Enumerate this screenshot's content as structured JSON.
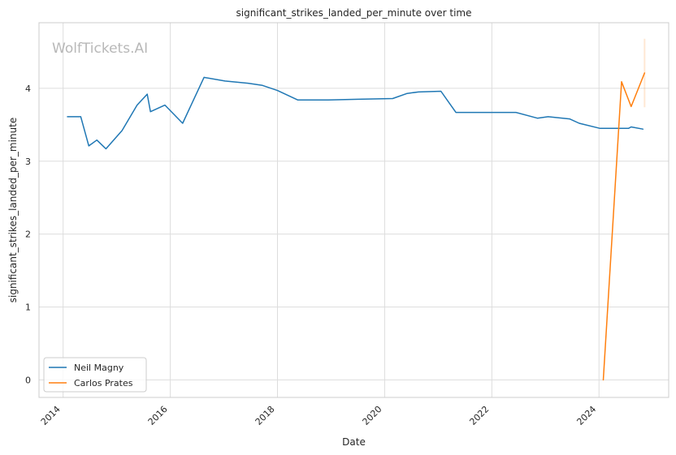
{
  "chart_data": {
    "type": "line",
    "title": "significant_strikes_landed_per_minute over time",
    "xlabel": "Date",
    "ylabel": "significant_strikes_landed_per_minute",
    "watermark": "WolfTickets.AI",
    "xlim": [
      2013.55,
      2025.3
    ],
    "ylim": [
      -0.24,
      4.9
    ],
    "x_ticks": [
      2014,
      2016,
      2018,
      2020,
      2022,
      2024
    ],
    "x_tick_labels": [
      "2014",
      "2016",
      "2018",
      "2020",
      "2022",
      "2024"
    ],
    "y_ticks": [
      0,
      1,
      2,
      3,
      4
    ],
    "y_tick_labels": [
      "0",
      "1",
      "2",
      "3",
      "4"
    ],
    "grid": true,
    "legend_position": "lower-left",
    "series": [
      {
        "name": "Neil Magny",
        "color": "#1f77b4",
        "points": [
          [
            2014.08,
            3.61
          ],
          [
            2014.33,
            3.61
          ],
          [
            2014.48,
            3.21
          ],
          [
            2014.63,
            3.29
          ],
          [
            2014.8,
            3.17
          ],
          [
            2015.1,
            3.42
          ],
          [
            2015.38,
            3.77
          ],
          [
            2015.57,
            3.92
          ],
          [
            2015.63,
            3.68
          ],
          [
            2015.9,
            3.77
          ],
          [
            2016.23,
            3.52
          ],
          [
            2016.63,
            4.15
          ],
          [
            2017.02,
            4.1
          ],
          [
            2017.45,
            4.07
          ],
          [
            2017.72,
            4.04
          ],
          [
            2018.0,
            3.97
          ],
          [
            2018.38,
            3.84
          ],
          [
            2018.95,
            3.84
          ],
          [
            2019.5,
            3.85
          ],
          [
            2020.15,
            3.86
          ],
          [
            2020.42,
            3.93
          ],
          [
            2020.63,
            3.95
          ],
          [
            2021.05,
            3.96
          ],
          [
            2021.33,
            3.67
          ],
          [
            2021.95,
            3.67
          ],
          [
            2022.45,
            3.67
          ],
          [
            2022.85,
            3.59
          ],
          [
            2023.05,
            3.61
          ],
          [
            2023.45,
            3.58
          ],
          [
            2023.63,
            3.52
          ],
          [
            2024.02,
            3.45
          ],
          [
            2024.55,
            3.45
          ],
          [
            2024.6,
            3.47
          ],
          [
            2024.82,
            3.44
          ]
        ]
      },
      {
        "name": "Carlos Prates",
        "color": "#ff7f0e",
        "points": [
          [
            2024.08,
            0.0
          ],
          [
            2024.42,
            4.09
          ],
          [
            2024.6,
            3.75
          ],
          [
            2024.85,
            4.21
          ]
        ],
        "band": {
          "x": 2024.85,
          "low": 3.74,
          "high": 4.68
        }
      }
    ]
  }
}
